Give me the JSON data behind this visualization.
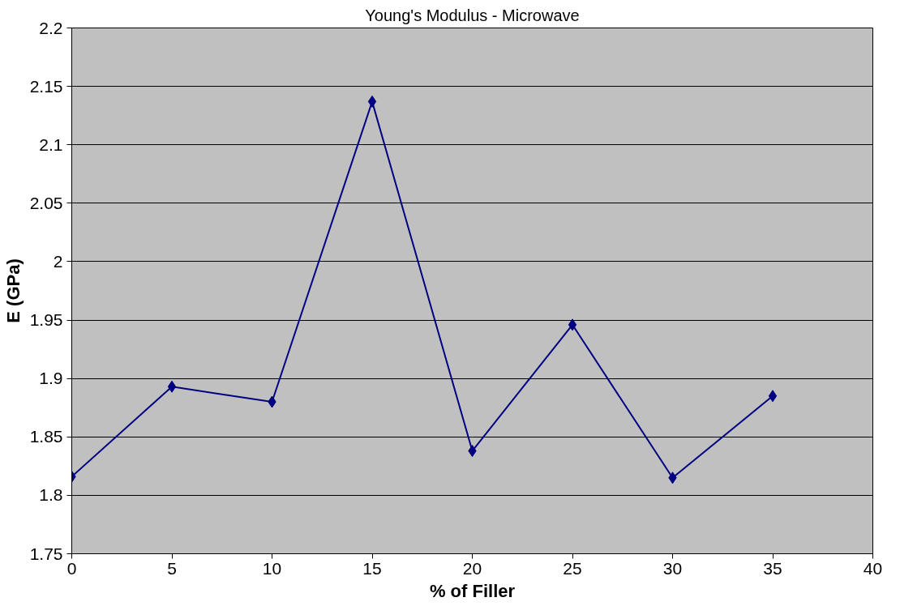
{
  "chart_data": {
    "type": "line",
    "title": "Young's Modulus - Microwave",
    "xlabel": "% of Filler",
    "ylabel": "E (GPa)",
    "x": [
      0,
      5,
      10,
      15,
      20,
      25,
      30,
      35
    ],
    "series": [
      {
        "color": "#000080",
        "values": [
          1.816,
          1.893,
          1.88,
          2.137,
          1.838,
          1.946,
          1.815,
          1.885
        ]
      }
    ],
    "xlim": [
      0,
      40
    ],
    "xticks": [
      0,
      5,
      10,
      15,
      20,
      25,
      30,
      35,
      40
    ],
    "ylim": [
      1.75,
      2.2
    ],
    "yticks": [
      1.75,
      1.8,
      1.85,
      1.9,
      1.95,
      2,
      2.05,
      2.1,
      2.15,
      2.2
    ],
    "grid": "y",
    "marker": "diamond",
    "line_style": "solid"
  }
}
